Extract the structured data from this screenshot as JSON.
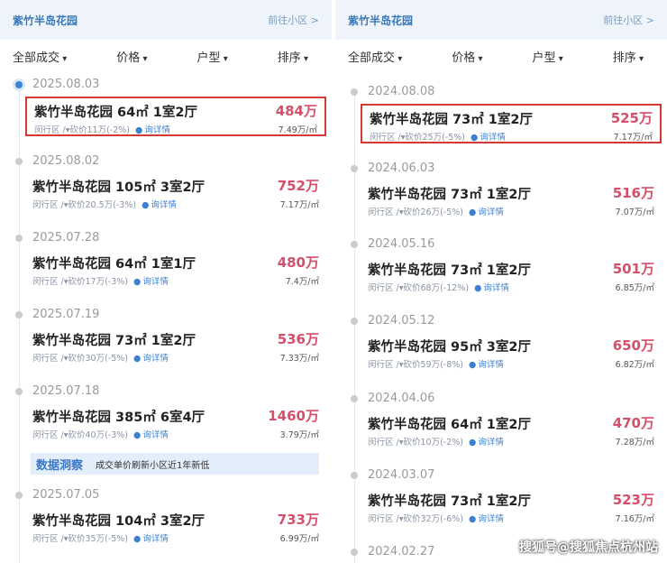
{
  "panels": [
    {
      "community": "紫竹半岛花园",
      "goto": "前往小区 >",
      "filters": [
        "全部成交",
        "价格",
        "户型",
        "排序"
      ],
      "entries": [
        {
          "date": "2025.08.03",
          "title": "紫竹半岛花园 64㎡ 1室2厅",
          "price": "484万",
          "district": "闵行区 /",
          "cut": "▾砍价11万(-2%)",
          "ask": "询详情",
          "unit": "7.49万/㎡",
          "highlight": true,
          "active": true
        },
        {
          "date": "2025.08.02",
          "title": "紫竹半岛花园 105㎡ 3室2厅",
          "price": "752万",
          "district": "闵行区 /",
          "cut": "▾砍价20.5万(-3%)",
          "ask": "询详情",
          "unit": "7.17万/㎡"
        },
        {
          "date": "2025.07.28",
          "title": "紫竹半岛花园 64㎡ 1室1厅",
          "price": "480万",
          "district": "闵行区 /",
          "cut": "▾砍价17万(-3%)",
          "ask": "询详情",
          "unit": "7.4万/㎡"
        },
        {
          "date": "2025.07.19",
          "title": "紫竹半岛花园 73㎡ 1室2厅",
          "price": "536万",
          "district": "闵行区 /",
          "cut": "▾砍价30万(-5%)",
          "ask": "询详情",
          "unit": "7.33万/㎡"
        },
        {
          "date": "2025.07.18",
          "title": "紫竹半岛花园 385㎡ 6室4厅",
          "price": "1460万",
          "district": "闵行区 /",
          "cut": "▾砍价40万(-3%)",
          "ask": "询详情",
          "unit": "3.79万/㎡"
        },
        {
          "date": "2025.07.05",
          "title": "紫竹半岛花园 104㎡ 3室2厅",
          "price": "733万",
          "district": "闵行区 /",
          "cut": "▾砍价35万(-5%)",
          "ask": "询详情",
          "unit": "6.99万/㎡"
        }
      ],
      "insight": {
        "label": "数据洞察",
        "text": "成交单价刷新小区近1年新低"
      }
    },
    {
      "community": "紫竹半岛花园",
      "goto": "前往小区 >",
      "filters": [
        "全部成交",
        "价格",
        "户型",
        "排序"
      ],
      "entries": [
        {
          "date": "2024.08.08",
          "title": "紫竹半岛花园 73㎡ 1室2厅",
          "price": "525万",
          "district": "闵行区 /",
          "cut": "▾砍价25万(-5%)",
          "ask": "询详情",
          "unit": "7.17万/㎡",
          "highlight": true
        },
        {
          "date": "2024.06.03",
          "title": "紫竹半岛花园 73㎡ 1室2厅",
          "price": "516万",
          "district": "闵行区 /",
          "cut": "▾砍价26万(-5%)",
          "ask": "询详情",
          "unit": "7.07万/㎡"
        },
        {
          "date": "2024.05.16",
          "title": "紫竹半岛花园 73㎡ 1室2厅",
          "price": "501万",
          "district": "闵行区 /",
          "cut": "▾砍价68万(-12%)",
          "ask": "询详情",
          "unit": "6.85万/㎡"
        },
        {
          "date": "2024.05.12",
          "title": "紫竹半岛花园 95㎡ 3室2厅",
          "price": "650万",
          "district": "闵行区 /",
          "cut": "▾砍价59万(-8%)",
          "ask": "询详情",
          "unit": "6.82万/㎡"
        },
        {
          "date": "2024.04.06",
          "title": "紫竹半岛花园 64㎡ 1室2厅",
          "price": "470万",
          "district": "闵行区 /",
          "cut": "▾砍价10万(-2%)",
          "ask": "询详情",
          "unit": "7.28万/㎡"
        },
        {
          "date": "2024.03.07",
          "title": "紫竹半岛花园 73㎡ 1室2厅",
          "price": "523万",
          "district": "闵行区 /",
          "cut": "▾砍价32万(-6%)",
          "ask": "询详情",
          "unit": "7.16万/㎡"
        },
        {
          "date": "2024.02.27"
        }
      ]
    }
  ],
  "watermark": "搜狐号@搜狐焦点杭州站"
}
